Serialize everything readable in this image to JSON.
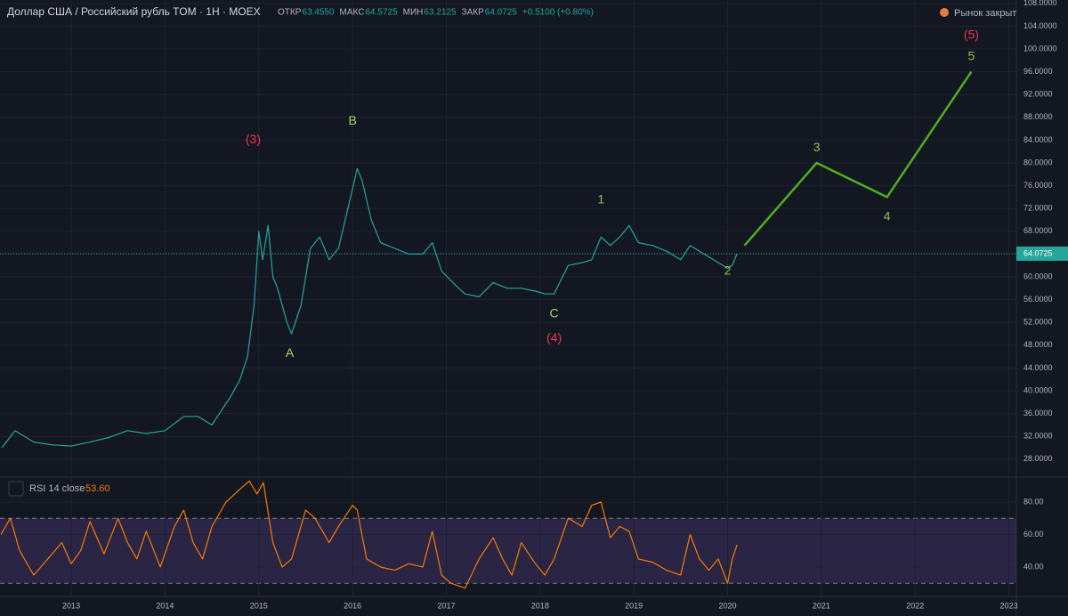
{
  "header": {
    "title": "Доллар США / Российский рубль TOM · 1H · MOEX",
    "ohlc": [
      [
        "ОТКР",
        "63.4550"
      ],
      [
        "МАКС",
        "64.5725"
      ],
      [
        "МИН",
        "63.2125"
      ],
      [
        "ЗАКР",
        "64.0725"
      ]
    ],
    "change": "+0.5100 (+0.80%)",
    "status": "Рынок закрыт",
    "rsi_label": "RSI 14 close",
    "rsi_value": "53.60"
  },
  "chart_data": [
    {
      "type": "line",
      "color": "#26a69a",
      "x": [
        2012.26,
        2012.4,
        2012.6,
        2012.8,
        2013.0,
        2013.2,
        2013.4,
        2013.6,
        2013.8,
        2014.0,
        2014.2,
        2014.35,
        2014.5,
        2014.6,
        2014.7,
        2014.8,
        2014.88,
        2014.95,
        2015.0,
        2015.04,
        2015.1,
        2015.15,
        2015.2,
        2015.3,
        2015.35,
        2015.45,
        2015.55,
        2015.65,
        2015.75,
        2015.85,
        2015.95,
        2016.05,
        2016.1,
        2016.2,
        2016.3,
        2016.45,
        2016.6,
        2016.75,
        2016.85,
        2016.95,
        2017.1,
        2017.2,
        2017.35,
        2017.5,
        2017.65,
        2017.8,
        2017.95,
        2018.05,
        2018.15,
        2018.3,
        2018.45,
        2018.55,
        2018.65,
        2018.75,
        2018.85,
        2018.95,
        2019.05,
        2019.2,
        2019.35,
        2019.5,
        2019.6,
        2019.7,
        2019.8,
        2019.9,
        2020.0,
        2020.05,
        2020.1
      ],
      "values": [
        30,
        33,
        31,
        30.5,
        30.3,
        31,
        31.8,
        33,
        32.5,
        33,
        35.5,
        35.5,
        34,
        36.5,
        39,
        42,
        46,
        55,
        68,
        63,
        69,
        60,
        58,
        52,
        50,
        55,
        65,
        67,
        63,
        65,
        72,
        79,
        77,
        70,
        66,
        65,
        64,
        64,
        66,
        61,
        58.5,
        57,
        56.5,
        59,
        58,
        58,
        57.5,
        57,
        57,
        62,
        62.5,
        63,
        67,
        65.5,
        67,
        69,
        66,
        65.5,
        64.5,
        63,
        65.5,
        64.5,
        63.5,
        62.5,
        61.5,
        62,
        64.07
      ],
      "last_price": {
        "value": 64.0725,
        "label": "64.0725"
      },
      "projection": {
        "color": "#4caf1e",
        "x": [
          2020.18,
          2020.95,
          2021.7,
          2022.6
        ],
        "values": [
          65.5,
          80,
          74,
          96
        ]
      },
      "annotations": [
        {
          "text": "(5)",
          "x": 2022.6,
          "y": 102.4,
          "color": "#f23645"
        },
        {
          "text": "5",
          "x": 2022.6,
          "y": 98.6,
          "color": "#8bc34a"
        },
        {
          "text": "3",
          "x": 2020.95,
          "y": 82.6,
          "color": "#8bc34a"
        },
        {
          "text": "4",
          "x": 2021.7,
          "y": 70.5,
          "color": "#8bc34a"
        },
        {
          "text": "(3)",
          "x": 2014.94,
          "y": 84,
          "color": "#f23645"
        },
        {
          "text": "B",
          "x": 2016.0,
          "y": 87.3,
          "color": "#a5d66b"
        },
        {
          "text": "A",
          "x": 2015.33,
          "y": 46.5,
          "color": "#a5d66b"
        },
        {
          "text": "1",
          "x": 2018.65,
          "y": 73.5,
          "color": "#8bc34a"
        },
        {
          "text": "C",
          "x": 2018.15,
          "y": 53.5,
          "color": "#a5d66b"
        },
        {
          "text": "(4)",
          "x": 2018.15,
          "y": 49.2,
          "color": "#f23645"
        },
        {
          "text": "2",
          "x": 2020.0,
          "y": 61,
          "color": "#8bc34a"
        }
      ],
      "xlim": [
        2012.24,
        2023.08
      ],
      "xticks": [
        2013,
        2014,
        2015,
        2016,
        2017,
        2018,
        2019,
        2020,
        2021,
        2022,
        2023
      ],
      "ylim": [
        25,
        108.6
      ],
      "yticks": [
        {
          "value": 28,
          "label": "28.0000"
        },
        {
          "value": 32,
          "label": "32.0000"
        },
        {
          "value": 36,
          "label": "36.0000"
        },
        {
          "value": 40,
          "label": "40.0000"
        },
        {
          "value": 44,
          "label": "44.0000"
        },
        {
          "value": 48,
          "label": "48.0000"
        },
        {
          "value": 52,
          "label": "52.0000"
        },
        {
          "value": 56,
          "label": "56.0000"
        },
        {
          "value": 60,
          "label": "60.0000"
        },
        {
          "value": 64,
          "label": "64.0000"
        },
        {
          "value": 68,
          "label": "68.0000"
        },
        {
          "value": 72,
          "label": "72.0000"
        },
        {
          "value": 76,
          "label": "76.0000"
        },
        {
          "value": 80,
          "label": "80.0000"
        },
        {
          "value": 84,
          "label": "84.0000"
        },
        {
          "value": 88,
          "label": "88.0000"
        },
        {
          "value": 92,
          "label": "92.0000"
        },
        {
          "value": 96,
          "label": "96.0000"
        },
        {
          "value": 100,
          "label": "100.0000"
        },
        {
          "value": 104,
          "label": "104.0000"
        },
        {
          "value": 108,
          "label": "108.0000"
        }
      ],
      "grid": true
    },
    {
      "type": "line",
      "color": "#f57c00",
      "x": [
        2012.25,
        2012.35,
        2012.45,
        2012.6,
        2012.75,
        2012.9,
        2013.0,
        2013.1,
        2013.2,
        2013.35,
        2013.5,
        2013.6,
        2013.7,
        2013.8,
        2013.95,
        2014.1,
        2014.2,
        2014.3,
        2014.4,
        2014.5,
        2014.65,
        2014.8,
        2014.9,
        2014.98,
        2015.05,
        2015.15,
        2015.25,
        2015.35,
        2015.5,
        2015.6,
        2015.75,
        2015.85,
        2016.0,
        2016.05,
        2016.15,
        2016.3,
        2016.45,
        2016.6,
        2016.75,
        2016.85,
        2016.95,
        2017.05,
        2017.2,
        2017.35,
        2017.5,
        2017.6,
        2017.7,
        2017.8,
        2017.95,
        2018.05,
        2018.15,
        2018.3,
        2018.45,
        2018.55,
        2018.65,
        2018.75,
        2018.85,
        2018.95,
        2019.05,
        2019.2,
        2019.35,
        2019.5,
        2019.6,
        2019.7,
        2019.8,
        2019.9,
        2020.0,
        2020.05,
        2020.1
      ],
      "values": [
        60,
        70,
        50,
        35,
        45,
        55,
        42,
        50,
        68,
        48,
        70,
        55,
        45,
        62,
        40,
        65,
        75,
        55,
        45,
        65,
        80,
        88,
        93,
        85,
        92,
        55,
        40,
        45,
        75,
        70,
        55,
        65,
        78,
        75,
        45,
        40,
        38,
        42,
        40,
        62,
        35,
        30,
        27,
        45,
        58,
        45,
        35,
        55,
        42,
        35,
        45,
        70,
        65,
        78,
        80,
        58,
        65,
        62,
        45,
        43,
        38,
        35,
        60,
        45,
        38,
        45,
        30,
        45,
        53.6
      ],
      "bands": [
        70,
        30
      ],
      "xlim": [
        2012.24,
        2023.08
      ],
      "xticks": [
        2013,
        2014,
        2015,
        2016,
        2017,
        2018,
        2019,
        2020,
        2021,
        2022,
        2023
      ],
      "ylim": [
        21.9,
        94.8
      ],
      "yticks": [
        {
          "value": 40,
          "label": "40.00"
        },
        {
          "value": 60,
          "label": "60.00"
        },
        {
          "value": 80,
          "label": "80.00"
        }
      ],
      "grid": true
    }
  ]
}
